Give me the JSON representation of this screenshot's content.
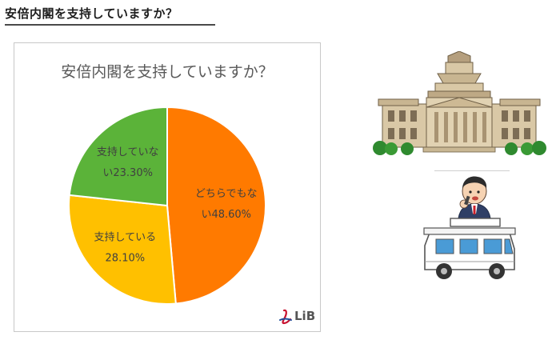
{
  "page": {
    "heading": "安倍内閣を支持していますか？"
  },
  "brand": {
    "logo_text": "LiB"
  },
  "colors": {
    "supporting": "#FFC000",
    "not_supporting": "#5BB339",
    "neither": "#FF7A00"
  },
  "chart_data": {
    "type": "pie",
    "title": "安倍内閣を支持していますか？",
    "slices": [
      {
        "label": "どちらでもない",
        "value": 48.6,
        "display": "48.60%",
        "color": "#FF7A00"
      },
      {
        "label": "支持している",
        "value": 28.1,
        "display": "28.10%",
        "color": "#FFC000"
      },
      {
        "label": "支持していない",
        "value": 23.3,
        "display": "23.30%",
        "color": "#5BB339"
      }
    ],
    "legend": "none",
    "grid": false
  }
}
